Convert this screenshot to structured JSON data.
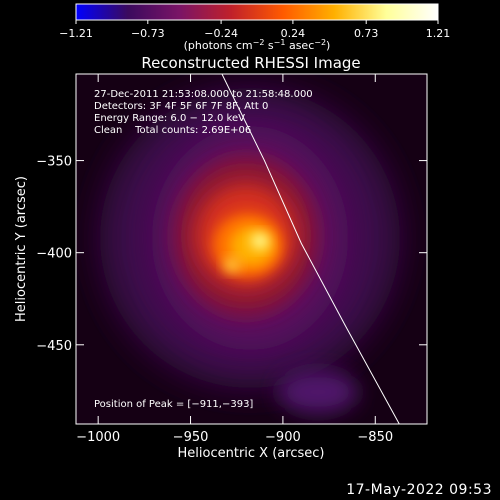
{
  "chart_data": {
    "type": "heatmap",
    "title": "Reconstructed RHESSI Image",
    "xlabel": "Heliocentric X (arcsec)",
    "ylabel": "Heliocentric Y (arcsec)",
    "xlim": [
      -1012,
      -822
    ],
    "ylim": [
      -493,
      -303
    ],
    "x_ticks": [
      -1000,
      -950,
      -900,
      -850
    ],
    "y_ticks": [
      -350,
      -400,
      -450
    ],
    "x_tick_labels": [
      "−1000",
      "−950",
      "−900",
      "−850"
    ],
    "y_tick_labels": [
      "−350",
      "−400",
      "−450"
    ],
    "colorbar": {
      "ticks": [
        -1.21,
        -0.73,
        -0.24,
        0.24,
        0.73,
        1.21
      ],
      "tick_labels": [
        "−1.21",
        "−0.73",
        "−0.24",
        "0.24",
        "0.73",
        "1.21"
      ],
      "unit_label_parts": [
        "(photons cm",
        "−2",
        " s",
        "−1",
        " asec",
        "−2",
        ")"
      ],
      "colormap": [
        "#0000ff",
        "#3a0a5e",
        "#7a1466",
        "#c0202a",
        "#ff5a00",
        "#ffb000",
        "#ffff99",
        "#ffffff"
      ]
    },
    "peak": [
      -911,
      -393
    ],
    "limb": [
      [
        -933,
        -303
      ],
      [
        -910,
        -350
      ],
      [
        -890,
        -395
      ],
      [
        -866,
        -440
      ],
      [
        -837,
        -493
      ]
    ],
    "annotations": [
      "27‐Dec‐2011 21:53:08.000 to 21:58:48.000",
      "Detectors: 3F 4F 5F 6F 7F 8F, Att 0",
      "Energy Range: 6.0 − 12.0 keV",
      "Clean    Total counts: 2.69E+06"
    ],
    "peak_label": "Position of Peak = [−911,−393]",
    "date_stamp": "17‐May‐2022 09:53"
  }
}
